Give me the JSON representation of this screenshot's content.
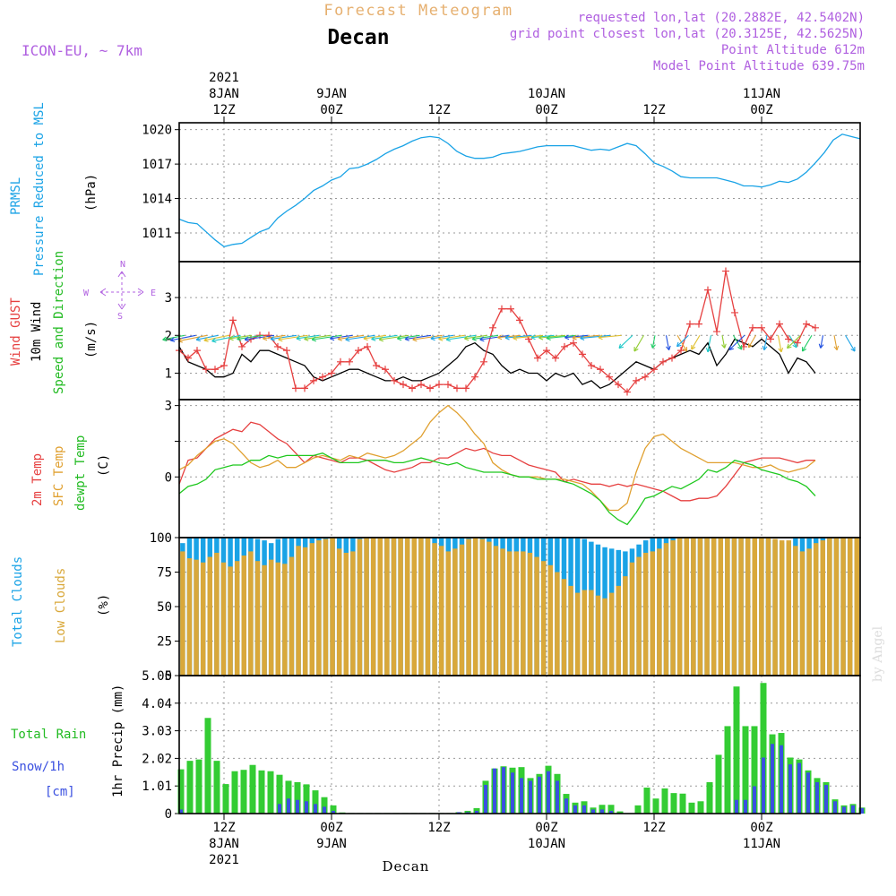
{
  "header": {
    "app_title": "Forecast Meteogram",
    "location": "Decan",
    "model": "ICON-EU, ~ 7km",
    "requested": "requested lon,lat (20.2882E, 42.5402N)",
    "grid_point": "grid point closest lon,lat (20.3125E, 42.5625N)",
    "point_altitude": "Point Altitude 612m",
    "model_altitude": "Model Point Altitude 639.75m"
  },
  "footer": {
    "location": "Decan",
    "credit": "by Angel"
  },
  "colors": {
    "pressure": "#1aa3e6",
    "gust": "#e64040",
    "wind": "#000000",
    "temp2m": "#e64040",
    "sfc": "#e0a030",
    "dewpt": "#1ec81e",
    "total_clouds": "#1aa3e6",
    "low_clouds": "#d9a83a",
    "rain": "#33cc33",
    "snow": "#3a50e0",
    "purple": "#b060e0",
    "green_lbl": "#22bb22"
  },
  "time_axis": {
    "start_hour": 0,
    "end_hour": 76,
    "top_ticks": [
      {
        "hour": 5,
        "l1": "2021",
        "l2": "8JAN",
        "l3": "12Z"
      },
      {
        "hour": 17,
        "l1": "",
        "l2": "9JAN",
        "l3": "00Z"
      },
      {
        "hour": 29,
        "l1": "",
        "l2": "",
        "l3": "12Z"
      },
      {
        "hour": 41,
        "l1": "",
        "l2": "10JAN",
        "l3": "00Z"
      },
      {
        "hour": 53,
        "l1": "",
        "l2": "",
        "l3": "12Z"
      },
      {
        "hour": 65,
        "l1": "",
        "l2": "11JAN",
        "l3": "00Z"
      }
    ],
    "bottom_ticks": [
      {
        "hour": 5,
        "l1": "12Z",
        "l2": "8JAN",
        "l3": "2021"
      },
      {
        "hour": 17,
        "l1": "00Z",
        "l2": "9JAN",
        "l3": ""
      },
      {
        "hour": 29,
        "l1": "12Z",
        "l2": "",
        "l3": ""
      },
      {
        "hour": 41,
        "l1": "00Z",
        "l2": "10JAN",
        "l3": ""
      },
      {
        "hour": 53,
        "l1": "12Z",
        "l2": "",
        "l3": ""
      },
      {
        "hour": 65,
        "l1": "00Z",
        "l2": "11JAN",
        "l3": ""
      }
    ]
  },
  "panel_labels": {
    "pressure": {
      "l1": "PRMSL",
      "l2": "Pressure Reduced to MSL",
      "unit": "(hPa)"
    },
    "wind": {
      "l1": "Wind GUST",
      "l2": "10m Wind",
      "l3": "Speed and Direction",
      "unit": "(m/s)"
    },
    "compass": {
      "n": "N",
      "s": "S",
      "e": "E",
      "w": "W"
    },
    "temp": {
      "l1": "2m Temp",
      "l2": "SFC Temp",
      "l3": "dewpt Temp",
      "unit": "(C)"
    },
    "clouds": {
      "l1": "Total Clouds",
      "l2": "Low Clouds",
      "unit": "(%)"
    },
    "precip": {
      "l1": "Total Rain",
      "l2": "Snow/1h",
      "l3": "[cm]",
      "unit": "1hr Precip (mm)"
    }
  },
  "chart_data": [
    {
      "type": "line",
      "name": "pressure",
      "ylim": [
        1008.5,
        1020.6
      ],
      "yticks": [
        1011,
        1014,
        1017,
        1020
      ],
      "grid": true,
      "series": [
        {
          "x": [
            0,
            1,
            2,
            3,
            4,
            5,
            6,
            7,
            8,
            9,
            10,
            11,
            12,
            13,
            14,
            15,
            16,
            17,
            18,
            19,
            20,
            21,
            22,
            23,
            24,
            25,
            26,
            27,
            28,
            29,
            30,
            31,
            32,
            33,
            34,
            35,
            36,
            37,
            38,
            39,
            40,
            41,
            42,
            43,
            44,
            45,
            46,
            47,
            48,
            49,
            50,
            51,
            52,
            53,
            54,
            55,
            56,
            57,
            58,
            59,
            60,
            61,
            62,
            63,
            64,
            65,
            66,
            67,
            68,
            69,
            70,
            71,
            72,
            73,
            74,
            75,
            76
          ],
          "values": [
            1012.2,
            1011.9,
            1011.8,
            1011.1,
            1010.4,
            1009.8,
            1010.0,
            1010.1,
            1010.6,
            1011.1,
            1011.4,
            1012.3,
            1012.9,
            1013.4,
            1014.0,
            1014.7,
            1015.1,
            1015.6,
            1015.9,
            1016.6,
            1016.7,
            1017.0,
            1017.4,
            1017.9,
            1018.3,
            1018.6,
            1019.0,
            1019.3,
            1019.4,
            1019.3,
            1018.8,
            1018.1,
            1017.7,
            1017.5,
            1017.5,
            1017.6,
            1017.9,
            1018.0,
            1018.1,
            1018.3,
            1018.5,
            1018.6,
            1018.6,
            1018.6,
            1018.6,
            1018.4,
            1018.2,
            1018.3,
            1018.2,
            1018.5,
            1018.8,
            1018.6,
            1017.9,
            1017.1,
            1016.8,
            1016.4,
            1015.9,
            1015.8,
            1015.8,
            1015.8,
            1015.8,
            1015.6,
            1015.4,
            1015.1,
            1015.1,
            1015.0,
            1015.2,
            1015.5,
            1015.4,
            1015.7,
            1016.3,
            1017.1,
            1018.0,
            1019.1,
            1019.6,
            1019.4,
            1019.2
          ]
        }
      ]
    },
    {
      "type": "line",
      "name": "wind",
      "ylim": [
        0.3,
        3.95
      ],
      "yticks": [
        1,
        2,
        3
      ],
      "grid": true,
      "series": [
        {
          "name": "Wind GUST",
          "values": [
            1.6,
            1.4,
            1.6,
            1.1,
            1.1,
            1.2,
            2.4,
            1.7,
            1.9,
            2.0,
            2.0,
            1.7,
            1.6,
            0.6,
            0.6,
            0.8,
            0.9,
            1.0,
            1.3,
            1.3,
            1.6,
            1.7,
            1.2,
            1.1,
            0.8,
            0.7,
            0.6,
            0.7,
            0.6,
            0.7,
            0.7,
            0.6,
            0.6,
            0.9,
            1.3,
            2.2,
            2.7,
            2.7,
            2.4,
            1.9,
            1.4,
            1.6,
            1.4,
            1.7,
            1.8,
            1.5,
            1.2,
            1.1,
            0.9,
            0.7,
            0.5,
            0.8,
            0.9,
            1.1,
            1.3,
            1.4,
            1.6,
            2.3,
            2.3,
            3.2,
            2.1,
            3.7,
            2.6,
            1.7,
            2.2,
            2.2,
            1.9,
            2.3,
            1.9,
            1.8,
            2.3,
            2.2
          ]
        },
        {
          "name": "10m Wind",
          "values": [
            1.7,
            1.3,
            1.2,
            1.1,
            0.9,
            0.9,
            1.0,
            1.5,
            1.3,
            1.6,
            1.6,
            1.5,
            1.4,
            1.3,
            1.2,
            0.9,
            0.8,
            0.9,
            1.0,
            1.1,
            1.1,
            1.0,
            0.9,
            0.8,
            0.8,
            0.9,
            0.8,
            0.8,
            0.9,
            1.0,
            1.2,
            1.4,
            1.7,
            1.8,
            1.6,
            1.5,
            1.2,
            1.0,
            1.1,
            1.0,
            1.0,
            0.8,
            1.0,
            0.9,
            1.0,
            0.7,
            0.8,
            0.6,
            0.7,
            0.9,
            1.1,
            1.3,
            1.2,
            1.1,
            1.3,
            1.4,
            1.5,
            1.6,
            1.5,
            1.8,
            1.2,
            1.5,
            1.9,
            1.8,
            1.7,
            1.9,
            1.7,
            1.5,
            1.0,
            1.4,
            1.3,
            1.0
          ]
        }
      ]
    },
    {
      "type": "line",
      "name": "temperature",
      "ylim": [
        -2.55,
        3.25
      ],
      "yticks": [
        0,
        1.5,
        3
      ],
      "tick_labels": [
        "0",
        "",
        "3"
      ],
      "grid": true,
      "series": [
        {
          "name": "2m Temp",
          "values": [
            -0.3,
            0.7,
            0.8,
            1.2,
            1.6,
            1.8,
            2.0,
            1.9,
            2.3,
            2.2,
            1.9,
            1.6,
            1.4,
            1.0,
            0.6,
            0.9,
            0.8,
            0.7,
            0.6,
            0.8,
            0.8,
            0.7,
            0.5,
            0.3,
            0.2,
            0.3,
            0.4,
            0.6,
            0.6,
            0.8,
            0.8,
            1.0,
            1.2,
            1.1,
            1.2,
            1.0,
            0.9,
            0.9,
            0.7,
            0.5,
            0.4,
            0.3,
            0.2,
            -0.2,
            -0.1,
            -0.2,
            -0.3,
            -0.3,
            -0.4,
            -0.3,
            -0.4,
            -0.3,
            -0.4,
            -0.5,
            -0.6,
            -0.8,
            -1.0,
            -1.0,
            -0.9,
            -0.9,
            -0.8,
            -0.4,
            0.1,
            0.6,
            0.7,
            0.8,
            0.8,
            0.8,
            0.7,
            0.6,
            0.7,
            0.7
          ]
        },
        {
          "name": "SFC Temp",
          "values": [
            0.3,
            0.5,
            0.9,
            1.2,
            1.5,
            1.6,
            1.4,
            1.0,
            0.6,
            0.4,
            0.5,
            0.7,
            0.4,
            0.4,
            0.6,
            0.8,
            0.9,
            0.8,
            0.7,
            0.9,
            0.8,
            1.0,
            0.9,
            0.8,
            0.9,
            1.1,
            1.4,
            1.7,
            2.3,
            2.7,
            3.0,
            2.7,
            2.3,
            1.8,
            1.4,
            0.6,
            0.3,
            0.1,
            0.0,
            0.0,
            0.0,
            -0.1,
            -0.1,
            -0.1,
            -0.2,
            -0.3,
            -0.6,
            -1.0,
            -1.4,
            -1.4,
            -1.1,
            0.2,
            1.2,
            1.7,
            1.8,
            1.5,
            1.2,
            1.0,
            0.8,
            0.6,
            0.6,
            0.6,
            0.6,
            0.5,
            0.4,
            0.4,
            0.5,
            0.3,
            0.2,
            0.3,
            0.4,
            0.7
          ]
        },
        {
          "name": "dewpt Temp",
          "values": [
            -0.7,
            -0.4,
            -0.3,
            -0.1,
            0.3,
            0.4,
            0.5,
            0.5,
            0.7,
            0.7,
            0.9,
            0.8,
            0.9,
            0.9,
            0.9,
            0.9,
            1.0,
            0.8,
            0.6,
            0.6,
            0.6,
            0.7,
            0.7,
            0.7,
            0.6,
            0.6,
            0.7,
            0.8,
            0.7,
            0.6,
            0.5,
            0.6,
            0.4,
            0.3,
            0.2,
            0.2,
            0.2,
            0.1,
            0.0,
            0.0,
            -0.1,
            -0.1,
            -0.1,
            -0.2,
            -0.3,
            -0.5,
            -0.7,
            -1.0,
            -1.5,
            -1.8,
            -2.0,
            -1.5,
            -0.9,
            -0.8,
            -0.6,
            -0.4,
            -0.5,
            -0.3,
            -0.1,
            0.3,
            0.2,
            0.4,
            0.7,
            0.6,
            0.5,
            0.3,
            0.2,
            0.1,
            -0.1,
            -0.2,
            -0.4,
            -0.8
          ]
        }
      ]
    },
    {
      "type": "bar",
      "name": "clouds",
      "ylim": [
        0,
        100
      ],
      "yticks": [
        0,
        25,
        50,
        75,
        100
      ],
      "grid": true,
      "series": [
        {
          "name": "Total Clouds",
          "values": [
            96,
            100,
            100,
            100,
            100,
            100,
            100,
            100,
            100,
            100,
            100,
            99,
            98,
            96,
            99,
            100,
            100,
            100,
            100,
            100,
            100,
            100,
            100,
            100,
            100,
            100,
            100,
            100,
            100,
            100,
            100,
            100,
            100,
            100,
            100,
            100,
            100,
            100,
            100,
            100,
            100,
            100,
            100,
            99,
            100,
            100,
            100,
            100,
            100,
            100,
            100,
            100,
            100,
            100,
            100,
            100,
            100,
            100,
            100,
            99,
            97,
            95,
            93,
            92,
            91,
            90,
            92,
            95,
            98,
            100,
            100,
            100,
            100,
            100,
            100,
            100,
            100,
            100,
            100,
            100,
            100,
            100,
            100,
            100,
            100,
            100,
            99,
            98,
            96,
            94,
            100,
            100,
            100,
            100,
            100,
            100,
            100,
            100,
            100,
            100
          ]
        },
        {
          "name": "Low Clouds",
          "values": [
            90,
            85,
            84,
            82,
            86,
            89,
            82,
            79,
            83,
            87,
            90,
            83,
            80,
            84,
            82,
            81,
            86,
            94,
            93,
            96,
            98,
            99,
            100,
            92,
            89,
            90,
            99,
            100,
            100,
            100,
            100,
            100,
            100,
            100,
            100,
            100,
            100,
            96,
            94,
            90,
            92,
            95,
            99,
            100,
            99,
            97,
            94,
            92,
            90,
            90,
            90,
            89,
            86,
            83,
            80,
            75,
            70,
            65,
            60,
            62,
            62,
            58,
            56,
            60,
            65,
            72,
            82,
            86,
            89,
            90,
            92,
            96,
            98,
            100,
            100,
            100,
            100,
            100,
            100,
            100,
            100,
            100,
            100,
            100,
            100,
            100,
            100,
            99,
            98,
            98,
            94,
            90,
            92,
            96,
            98,
            100,
            100,
            100,
            100,
            100
          ]
        }
      ]
    },
    {
      "type": "bar",
      "name": "precipitation",
      "ylim": [
        0,
        5.05
      ],
      "yticks": [
        0,
        1.01,
        2.02,
        3.03,
        4.04,
        5.05
      ],
      "tick_labels": [
        "0",
        "1.01",
        "2.02",
        "3.03",
        "4.04",
        "5.05"
      ],
      "grid": true,
      "series": [
        {
          "name": "Total Rain",
          "values": [
            1.62,
            1.93,
            1.98,
            3.5,
            1.93,
            1.08,
            1.55,
            1.6,
            1.78,
            1.58,
            1.55,
            1.42,
            1.2,
            1.15,
            1.07,
            0.85,
            0.6,
            0.3,
            0.04,
            0.02,
            0.02,
            0.02,
            0.02,
            0.02,
            0.02,
            0.02,
            0.02,
            0.02,
            0.02,
            0.02,
            0.02,
            0.05,
            0.1,
            0.2,
            1.2,
            1.65,
            1.73,
            1.68,
            1.7,
            1.3,
            1.45,
            1.75,
            1.45,
            0.72,
            0.4,
            0.45,
            0.22,
            0.32,
            0.32,
            0.08,
            0.0,
            0.3,
            0.95,
            0.55,
            0.92,
            0.75,
            0.73,
            0.4,
            0.45,
            1.15,
            2.15,
            3.2,
            4.65,
            3.2,
            3.2,
            4.78,
            2.9,
            2.95,
            2.05,
            1.98,
            1.58,
            1.3,
            1.15,
            0.52,
            0.3,
            0.35,
            0.22
          ]
        },
        {
          "name": "Snow/1h",
          "values": [
            0.15,
            0,
            0,
            0,
            0,
            0,
            0,
            0,
            0,
            0,
            0,
            0.35,
            0.55,
            0.5,
            0.45,
            0.35,
            0.25,
            0.1,
            0,
            0,
            0,
            0,
            0,
            0,
            0,
            0,
            0,
            0,
            0,
            0,
            0,
            0.05,
            0.05,
            0.1,
            1.05,
            1.65,
            1.7,
            1.5,
            1.3,
            1.2,
            1.35,
            1.55,
            1.2,
            0.55,
            0.3,
            0.3,
            0.15,
            0.15,
            0.1,
            0,
            0,
            0,
            0,
            0,
            0,
            0,
            0,
            0,
            0,
            0,
            0,
            0,
            0.5,
            0.5,
            1.0,
            2.05,
            2.55,
            2.5,
            1.8,
            1.85,
            1.5,
            1.15,
            1.05,
            0.45,
            0.25,
            0.3,
            0.2
          ]
        }
      ]
    }
  ]
}
